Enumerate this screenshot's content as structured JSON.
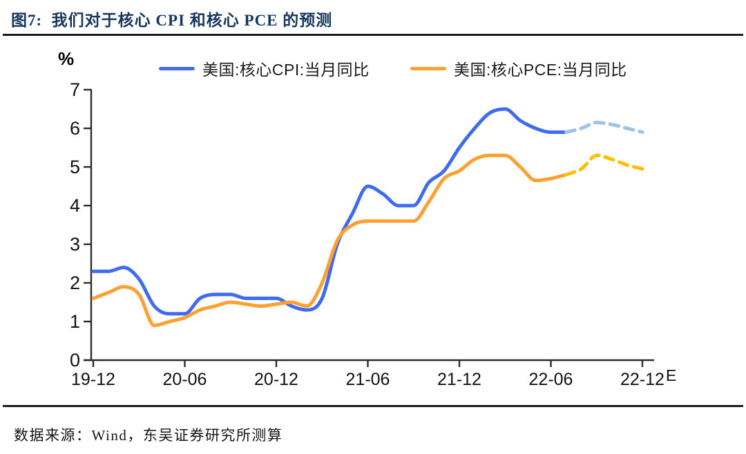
{
  "header": {
    "title": "图7:  我们对于核心 CPI 和核心 PCE 的预测"
  },
  "footer": {
    "source": "数据来源：Wind，东吴证券研究所测算"
  },
  "chart_data": {
    "type": "line",
    "title": "我们对于核心 CPI 和核心 PCE 的预测",
    "xlabel": "",
    "ylabel": "%",
    "unit_label": "%",
    "ylim": [
      0,
      7
    ],
    "y_ticks": [
      0,
      1,
      2,
      3,
      4,
      5,
      6,
      7
    ],
    "grid": false,
    "legend_position": "top",
    "axis_color": "#2b2b2b",
    "label_color": "#111111",
    "x_tick_labels": [
      "19-12",
      "20-06",
      "20-12",
      "21-06",
      "21-12",
      "22-06",
      "22-12"
    ],
    "x_tick_months": [
      0,
      6,
      12,
      18,
      24,
      30,
      36
    ],
    "estimate_suffix": "E",
    "months": [
      "19-12",
      "20-01",
      "20-02",
      "20-03",
      "20-04",
      "20-05",
      "20-06",
      "20-07",
      "20-08",
      "20-09",
      "20-10",
      "20-11",
      "20-12",
      "21-01",
      "21-02",
      "21-03",
      "21-04",
      "21-05",
      "21-06",
      "21-07",
      "21-08",
      "21-09",
      "21-10",
      "21-11",
      "21-12",
      "22-01",
      "22-02",
      "22-03",
      "22-04",
      "22-05",
      "22-06",
      "22-07",
      "22-08",
      "22-09",
      "22-10",
      "22-11",
      "22-12"
    ],
    "series": [
      {
        "name": "美国:核心CPI:当月同比",
        "color": "#3F6BF0",
        "forecast_color": "#9DC3E6",
        "forecast_start_index": 31,
        "values": [
          2.3,
          2.3,
          2.4,
          2.1,
          1.4,
          1.2,
          1.2,
          1.6,
          1.7,
          1.7,
          1.6,
          1.6,
          1.6,
          1.4,
          1.3,
          1.6,
          3.0,
          3.8,
          4.5,
          4.3,
          4.0,
          4.0,
          4.6,
          4.9,
          5.5,
          6.0,
          6.4,
          6.5,
          6.2,
          6.0,
          5.9,
          5.9,
          6.0,
          6.15,
          6.1,
          6.0,
          5.9
        ]
      },
      {
        "name": "美国:核心PCE:当月同比",
        "color": "#FFA030",
        "forecast_color": "#FFC000",
        "forecast_start_index": 31,
        "values": [
          1.6,
          1.75,
          1.9,
          1.7,
          0.9,
          1.0,
          1.1,
          1.3,
          1.4,
          1.5,
          1.45,
          1.4,
          1.45,
          1.5,
          1.4,
          2.0,
          3.1,
          3.5,
          3.6,
          3.6,
          3.6,
          3.6,
          4.1,
          4.7,
          4.9,
          5.2,
          5.3,
          5.3,
          5.0,
          4.65,
          4.7,
          4.8,
          4.95,
          5.3,
          5.2,
          5.05,
          4.95
        ]
      }
    ]
  }
}
